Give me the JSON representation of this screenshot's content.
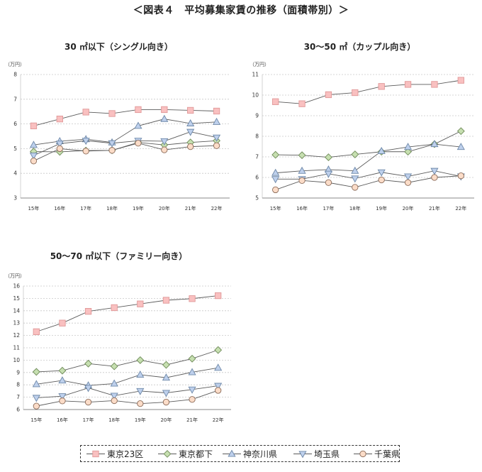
{
  "figure_title": "＜図表４　平均募集家賃の推移（面積帯別）＞",
  "chart_data": [
    {
      "type": "line",
      "title": "30 ㎡以下（シングル向き）",
      "y_unit": "（万円）",
      "categories": [
        "15年",
        "16年",
        "17年",
        "18年",
        "19年",
        "20年",
        "21年",
        "22年"
      ],
      "ylim": [
        3,
        8
      ],
      "yticks": [
        3,
        4,
        5,
        6,
        7,
        8
      ],
      "grid": "horizontal",
      "series": [
        {
          "name": "東京23区",
          "values": [
            5.92,
            6.2,
            6.48,
            6.42,
            6.58,
            6.58,
            6.55,
            6.52
          ]
        },
        {
          "name": "東京都下",
          "values": [
            4.88,
            4.87,
            4.92,
            4.93,
            5.25,
            5.15,
            5.25,
            5.32
          ]
        },
        {
          "name": "神奈川県",
          "values": [
            5.15,
            5.3,
            5.38,
            5.25,
            5.92,
            6.2,
            6.02,
            6.08
          ]
        },
        {
          "name": "埼玉県",
          "values": [
            4.72,
            5.2,
            5.32,
            5.22,
            5.32,
            5.3,
            5.68,
            5.45
          ]
        },
        {
          "name": "千葉県",
          "values": [
            4.5,
            5.0,
            4.9,
            4.93,
            5.22,
            4.95,
            5.08,
            5.12
          ]
        }
      ]
    },
    {
      "type": "line",
      "title": "30～50 ㎡（カップル向き）",
      "y_unit": "（万円）",
      "categories": [
        "15年",
        "16年",
        "17年",
        "18年",
        "19年",
        "20年",
        "21年",
        "22年"
      ],
      "ylim": [
        5,
        11
      ],
      "yticks": [
        5,
        6,
        7,
        8,
        9,
        10,
        11
      ],
      "grid": "horizontal",
      "series": [
        {
          "name": "東京23区",
          "values": [
            9.68,
            9.58,
            10.02,
            10.12,
            10.42,
            10.52,
            10.52,
            10.72
          ]
        },
        {
          "name": "東京都下",
          "values": [
            7.1,
            7.08,
            6.98,
            7.12,
            7.25,
            7.25,
            7.62,
            8.25
          ]
        },
        {
          "name": "神奈川県",
          "values": [
            6.22,
            6.32,
            6.38,
            6.32,
            7.28,
            7.48,
            7.62,
            7.48
          ]
        },
        {
          "name": "埼玉県",
          "values": [
            5.92,
            5.92,
            6.18,
            5.95,
            6.25,
            6.05,
            6.32,
            6.05
          ]
        },
        {
          "name": "千葉県",
          "values": [
            5.4,
            5.85,
            5.75,
            5.52,
            5.88,
            5.75,
            6.0,
            6.08
          ]
        }
      ]
    },
    {
      "type": "line",
      "title": "50～70 ㎡以下（ファミリー向き）",
      "y_unit": "（万円）",
      "categories": [
        "15年",
        "16年",
        "17年",
        "18年",
        "19年",
        "20年",
        "21年",
        "22年"
      ],
      "ylim": [
        6,
        16
      ],
      "yticks": [
        6,
        7,
        8,
        9,
        10,
        11,
        12,
        13,
        14,
        15,
        16
      ],
      "grid": "horizontal",
      "series": [
        {
          "name": "東京23区",
          "values": [
            12.3,
            13.0,
            13.95,
            14.25,
            14.55,
            14.85,
            14.98,
            15.22
          ]
        },
        {
          "name": "東京都下",
          "values": [
            9.05,
            9.15,
            9.72,
            9.5,
            10.0,
            9.62,
            10.12,
            10.82
          ]
        },
        {
          "name": "神奈川県",
          "values": [
            8.05,
            8.35,
            7.95,
            8.1,
            8.82,
            8.58,
            9.02,
            9.38
          ]
        },
        {
          "name": "埼玉県",
          "values": [
            6.95,
            7.08,
            7.75,
            7.12,
            7.5,
            7.35,
            7.62,
            7.92
          ]
        },
        {
          "name": "千葉県",
          "values": [
            6.28,
            6.7,
            6.6,
            6.72,
            6.48,
            6.6,
            6.82,
            7.55
          ]
        }
      ]
    }
  ],
  "legend": [
    {
      "name": "東京23区",
      "marker": "square",
      "fill": "#f9c0c0",
      "stroke": "#e09898"
    },
    {
      "name": "東京都下",
      "marker": "diamond",
      "fill": "#c6dfb0",
      "stroke": "#6e8a58"
    },
    {
      "name": "神奈川県",
      "marker": "triangle-up",
      "fill": "#bed0ec",
      "stroke": "#6e88a8"
    },
    {
      "name": "埼玉県",
      "marker": "triangle-down",
      "fill": "#bed0ec",
      "stroke": "#6e88a8"
    },
    {
      "name": "千葉県",
      "marker": "circle",
      "fill": "#fbdcc8",
      "stroke": "#8a6a58"
    }
  ],
  "colors": {
    "line": "#5a5a5a",
    "grid": "#c8c8c8",
    "axis": "#888888",
    "text": "#333333"
  }
}
